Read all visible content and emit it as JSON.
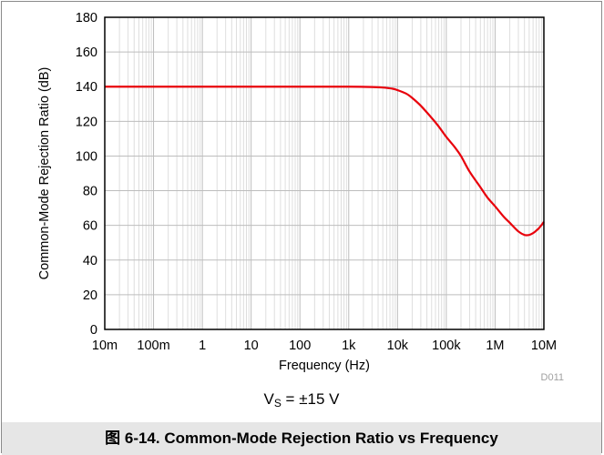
{
  "figure": {
    "caption": "图 6-14. Common-Mode Rejection Ratio vs Frequency",
    "condition_prefix": "V",
    "condition_sub": "S",
    "condition_suffix": " = ±15 V",
    "doc_id": "D011"
  },
  "chart_data": {
    "type": "line",
    "title": "",
    "xlabel": "Frequency (Hz)",
    "ylabel": "Common-Mode Rejection Ratio (dB)",
    "x_scale": "log",
    "xlim": [
      0.01,
      10000000
    ],
    "ylim": [
      0,
      180
    ],
    "x_ticks": [
      0.01,
      0.1,
      1,
      10,
      100,
      1000,
      10000,
      100000,
      1000000,
      10000000
    ],
    "x_tick_labels": [
      "10m",
      "100m",
      "1",
      "10",
      "100",
      "1k",
      "10k",
      "100k",
      "1M",
      "10M"
    ],
    "y_ticks": [
      0,
      20,
      40,
      60,
      80,
      100,
      120,
      140,
      160,
      180
    ],
    "y_tick_labels": [
      "0",
      "20",
      "40",
      "60",
      "80",
      "100",
      "120",
      "140",
      "160",
      "180"
    ],
    "grid": true,
    "line_color": "#e8000b",
    "series": [
      {
        "name": "",
        "x": [
          0.01,
          1,
          100,
          1000,
          3000,
          5000,
          8000,
          10000,
          15000,
          20000,
          30000,
          50000,
          70000,
          100000,
          150000,
          200000,
          300000,
          500000,
          700000,
          1000000,
          1500000,
          2000000,
          3000000,
          4000000,
          5000000,
          6000000,
          7000000,
          8000000,
          10000000
        ],
        "y": [
          140,
          140,
          140,
          140,
          139.8,
          139.5,
          138.8,
          138,
          136,
          133.5,
          129,
          122,
          117,
          111,
          105,
          100,
          91,
          82,
          76,
          71,
          65,
          61.5,
          56.5,
          54.5,
          54.5,
          55.5,
          57,
          58.5,
          62
        ]
      }
    ]
  }
}
